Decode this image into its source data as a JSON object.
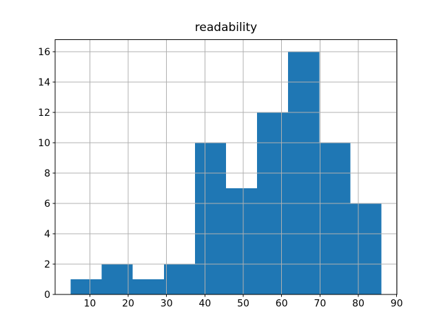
{
  "figure": {
    "title": "readability"
  },
  "chart_data": {
    "type": "bar",
    "subtype": "histogram",
    "title": "readability",
    "xlabel": "",
    "ylabel": "",
    "bin_edges": [
      5.0,
      13.1,
      21.2,
      29.3,
      37.4,
      45.5,
      53.6,
      61.7,
      69.8,
      77.9,
      86.0
    ],
    "counts": [
      1,
      2,
      1,
      2,
      10,
      7,
      12,
      16,
      10,
      6
    ],
    "xticks": [
      10,
      20,
      30,
      40,
      50,
      60,
      70,
      80,
      90
    ],
    "yticks": [
      0,
      2,
      4,
      6,
      8,
      10,
      12,
      14,
      16
    ],
    "xlim": [
      0.95,
      90.05
    ],
    "ylim": [
      0,
      16.8
    ],
    "grid": true,
    "grid_over_bars": true,
    "legend": "none",
    "bar_color": "#1f77b4",
    "grid_color": "#b0b0b0",
    "axis_color": "#000000",
    "background_color": "#ffffff"
  }
}
